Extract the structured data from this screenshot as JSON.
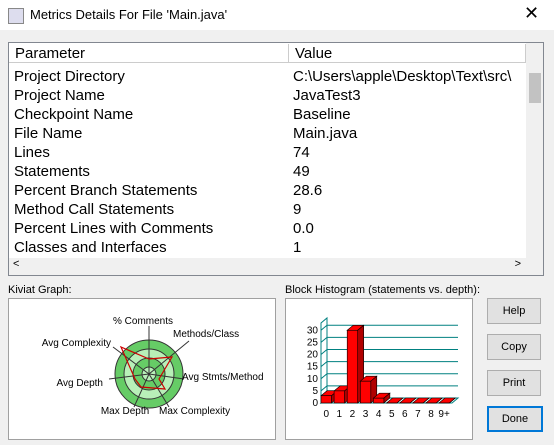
{
  "window": {
    "title": "Metrics Details For File 'Main.java'"
  },
  "table": {
    "columns": [
      "Parameter",
      "Value"
    ],
    "rows": [
      [
        "Project Directory",
        "C:\\Users\\apple\\Desktop\\Text\\src\\"
      ],
      [
        "Project Name",
        "JavaTest3"
      ],
      [
        "Checkpoint Name",
        "Baseline"
      ],
      [
        "File Name",
        "Main.java"
      ],
      [
        "Lines",
        "74"
      ],
      [
        "Statements",
        "49"
      ],
      [
        "Percent Branch Statements",
        "28.6"
      ],
      [
        "Method Call Statements",
        "9"
      ],
      [
        "Percent Lines with Comments",
        "0.0"
      ],
      [
        "Classes and Interfaces",
        "1"
      ]
    ]
  },
  "kiviat": {
    "label": "Kiviat Graph:",
    "axes": [
      "% Comments",
      "Methods/Class",
      "Avg Complexity",
      "Avg Depth",
      "Avg Stmts/Method",
      "Max Depth",
      "Max Complexity"
    ]
  },
  "chart_data": {
    "type": "bar",
    "title": "Block Histogram (statements vs. depth):",
    "categories": [
      "0",
      "1",
      "2",
      "3",
      "4",
      "5",
      "6",
      "7",
      "8",
      "9+"
    ],
    "values": [
      3,
      5,
      30,
      9,
      2,
      0,
      0,
      0,
      0,
      0
    ],
    "color": "#ff0000",
    "ylim": [
      0,
      33
    ],
    "yticks": [
      0,
      5,
      10,
      15,
      20,
      25,
      30
    ],
    "grid": true
  },
  "buttons": [
    "Help",
    "Copy",
    "Print",
    "Done"
  ]
}
